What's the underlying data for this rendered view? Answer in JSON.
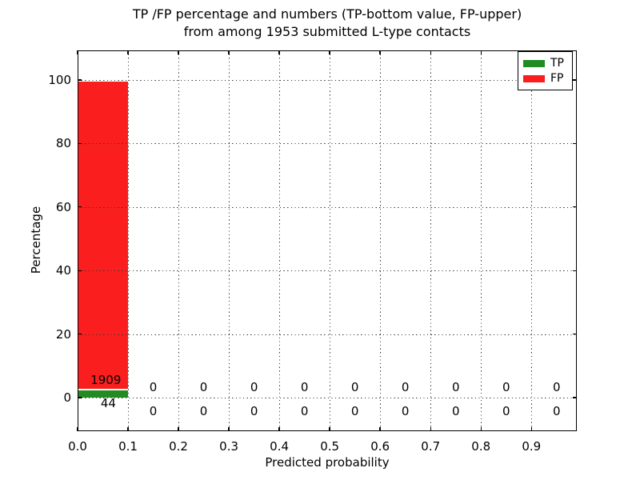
{
  "chart_data": {
    "type": "bar",
    "stacked": true,
    "title_line1": "TP /FP percentage and numbers (TP-bottom value, FP-upper)",
    "title_line2": "from among 1953 submitted L-type contacts",
    "xlabel": "Predicted probability",
    "ylabel": "Percentage",
    "total_submitted": 1953,
    "bin_width": 0.1,
    "categories": [
      "0.0-0.1",
      "0.1-0.2",
      "0.2-0.3",
      "0.3-0.4",
      "0.4-0.5",
      "0.5-0.6",
      "0.6-0.7",
      "0.7-0.8",
      "0.8-0.9",
      "0.9-1.0"
    ],
    "bin_centers": [
      0.05,
      0.15,
      0.25,
      0.35,
      0.45,
      0.55,
      0.65,
      0.75,
      0.85,
      0.95
    ],
    "series": [
      {
        "name": "TP",
        "color": "#228b22",
        "counts": [
          44,
          0,
          0,
          0,
          0,
          0,
          0,
          0,
          0,
          0
        ],
        "percentages": [
          2.25,
          0,
          0,
          0,
          0,
          0,
          0,
          0,
          0,
          0
        ]
      },
      {
        "name": "FP",
        "color": "#fa1e1e",
        "counts": [
          1909,
          0,
          0,
          0,
          0,
          0,
          0,
          0,
          0,
          0
        ],
        "percentages": [
          97.75,
          0,
          0,
          0,
          0,
          0,
          0,
          0,
          0,
          0
        ]
      }
    ],
    "xticks": [
      "0.0",
      "0.1",
      "0.2",
      "0.3",
      "0.4",
      "0.5",
      "0.6",
      "0.7",
      "0.8",
      "0.9"
    ],
    "yticks": [
      0,
      20,
      40,
      60,
      80,
      100
    ],
    "xlim": [
      0.0,
      0.99
    ],
    "ylim": [
      -10.6,
      109.3
    ],
    "grid": "dotted both axes, drawn over bars",
    "bar_edge_color": "#ffffff",
    "legend": {
      "position": "upper right",
      "entries": [
        {
          "label": "TP",
          "color": "#228b22"
        },
        {
          "label": "FP",
          "color": "#fa1e1e"
        }
      ]
    }
  }
}
